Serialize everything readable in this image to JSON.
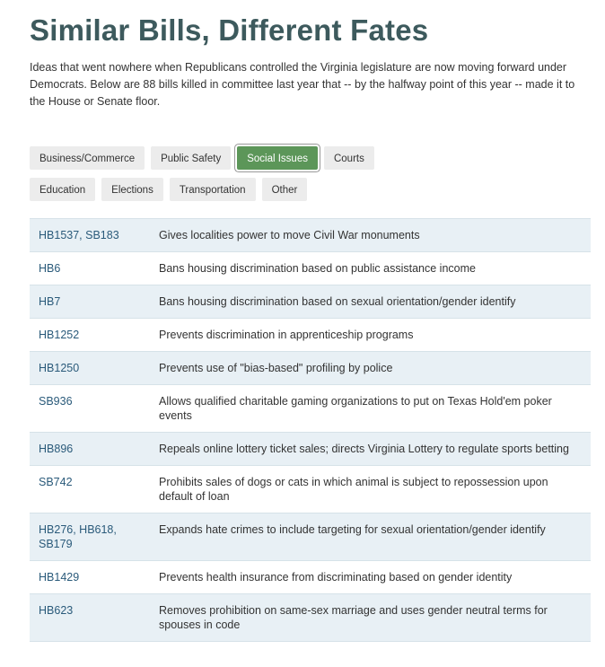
{
  "page": {
    "title": "Similar Bills, Different Fates",
    "intro": "Ideas that went nowhere when Republicans controlled the Virginia legislature are now moving forward under Democrats. Below are 88 bills killed in committee last year that -- by the halfway point of this year -- made it to the House or Senate floor."
  },
  "filters": {
    "active": "Social Issues",
    "row1": [
      "Business/Commerce",
      "Public Safety",
      "Social Issues",
      "Courts"
    ],
    "row2": [
      "Education",
      "Elections",
      "Transportation",
      "Other"
    ]
  },
  "bills": [
    {
      "bill": "HB1537, SB183",
      "description": "Gives localities power to move Civil War monuments"
    },
    {
      "bill": "HB6",
      "description": "Bans housing discrimination based on public assistance income"
    },
    {
      "bill": "HB7",
      "description": "Bans housing discrimination based on sexual orientation/gender identify"
    },
    {
      "bill": "HB1252",
      "description": "Prevents discrimination in apprenticeship programs"
    },
    {
      "bill": "HB1250",
      "description": "Prevents use of \"bias-based\" profiling by police"
    },
    {
      "bill": "SB936",
      "description": "Allows qualified charitable gaming organizations to put on Texas Hold'em poker events"
    },
    {
      "bill": "HB896",
      "description": "Repeals online lottery ticket sales; directs Virginia Lottery to regulate sports betting"
    },
    {
      "bill": "SB742",
      "description": "Prohibits sales of dogs or cats in which animal is subject to repossession upon default of loan"
    },
    {
      "bill": "HB276, HB618, SB179",
      "description": "Expands hate crimes to include targeting for sexual orientation/gender identify"
    },
    {
      "bill": "HB1429",
      "description": "Prevents health insurance from discriminating based on gender identity"
    },
    {
      "bill": "HB623",
      "description": "Removes prohibition on same-sex marriage and uses gender neutral terms for spouses in code"
    }
  ]
}
